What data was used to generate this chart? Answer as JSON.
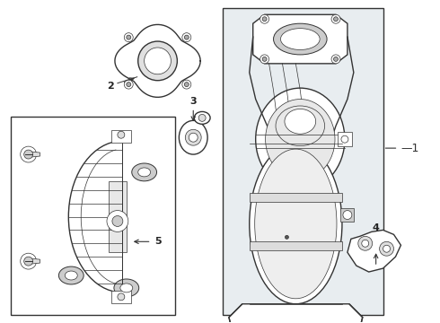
{
  "background_color": "#ffffff",
  "box_bg": "#e8edf0",
  "line_color": "#333333",
  "label_color": "#222222",
  "lw_main": 1.0,
  "lw_thin": 0.5,
  "lw_med": 0.7
}
